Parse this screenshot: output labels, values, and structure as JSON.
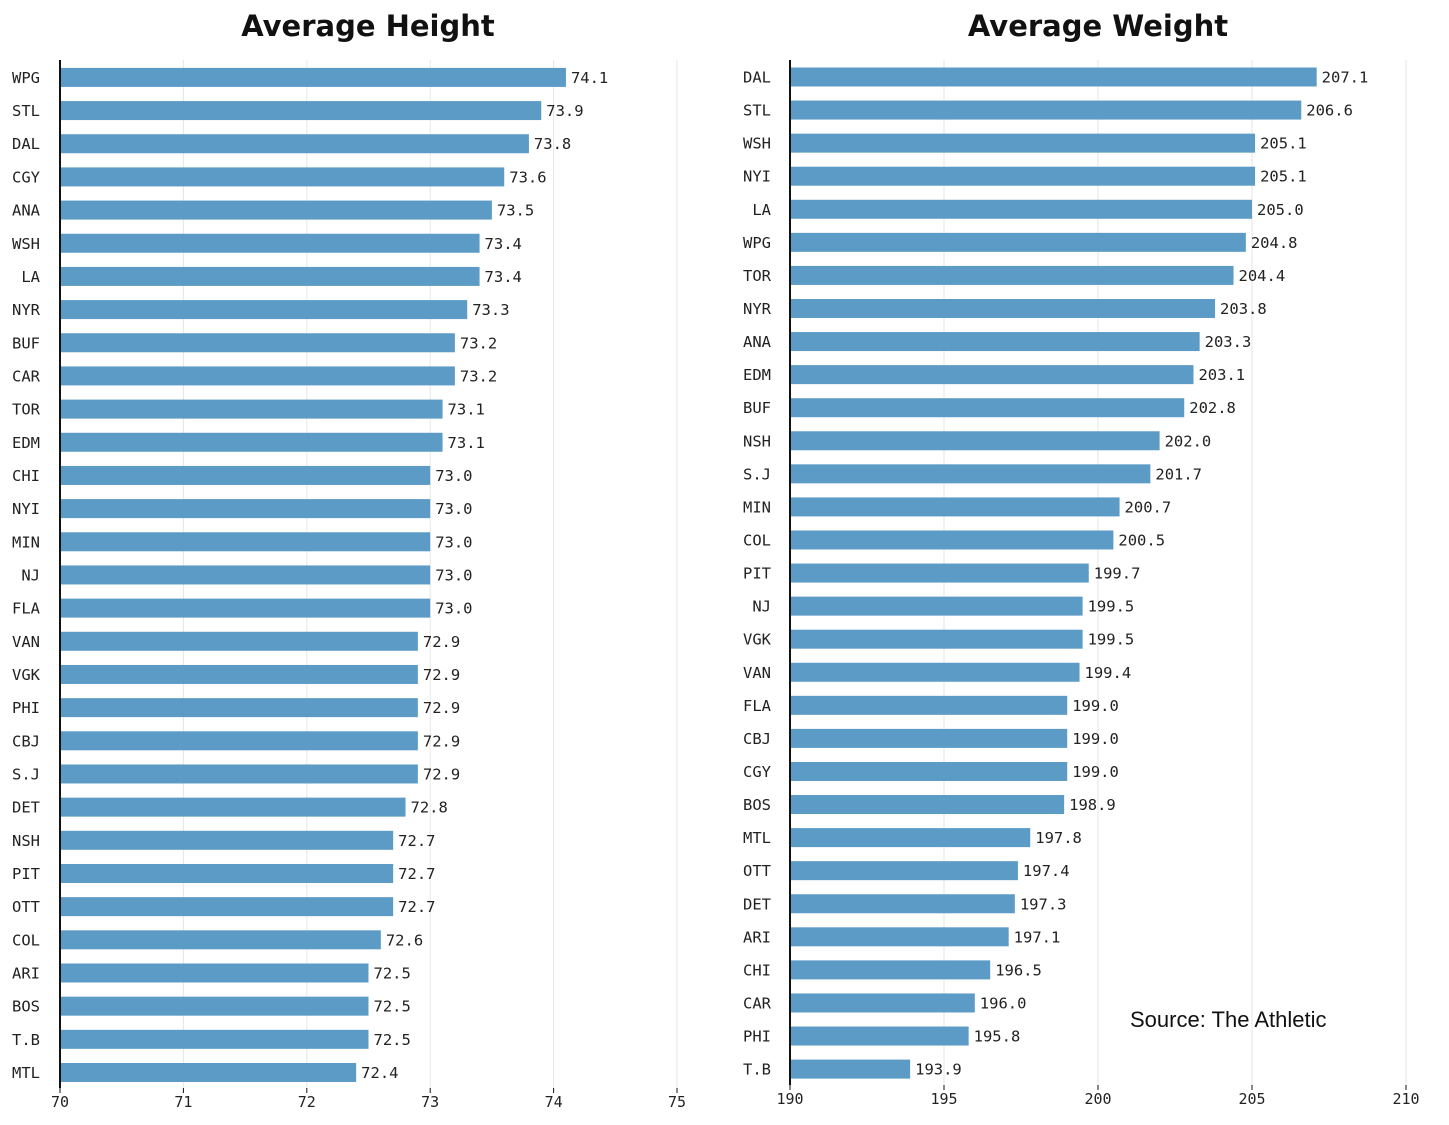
{
  "source_text": "Source: The Athletic",
  "colors": {
    "bar": "#5b9bc6",
    "grid": "#e6e6e6",
    "axis": "#111111"
  },
  "chart_data": [
    {
      "type": "bar",
      "orientation": "horizontal",
      "title": "Average Height",
      "xlabel": "",
      "ylabel": "",
      "xlim": [
        70,
        75
      ],
      "ticks": [
        70,
        71,
        72,
        73,
        74,
        75
      ],
      "grid": true,
      "categories": [
        "WPG",
        "STL",
        "DAL",
        "CGY",
        "ANA",
        "WSH",
        "LA",
        "NYR",
        "BUF",
        "CAR",
        "TOR",
        "EDM",
        "CHI",
        "NYI",
        "MIN",
        "NJ",
        "FLA",
        "VAN",
        "VGK",
        "PHI",
        "CBJ",
        "S.J",
        "DET",
        "NSH",
        "PIT",
        "OTT",
        "COL",
        "ARI",
        "BOS",
        "T.B",
        "MTL"
      ],
      "values": [
        74.1,
        73.9,
        73.8,
        73.6,
        73.5,
        73.4,
        73.4,
        73.3,
        73.2,
        73.2,
        73.1,
        73.1,
        73.0,
        73.0,
        73.0,
        73.0,
        73.0,
        72.9,
        72.9,
        72.9,
        72.9,
        72.9,
        72.8,
        72.7,
        72.7,
        72.7,
        72.6,
        72.5,
        72.5,
        72.5,
        72.4
      ],
      "value_labels": [
        "74.1",
        "73.9",
        "73.8",
        "73.6",
        "73.5",
        "73.4",
        "73.4",
        "73.3",
        "73.2",
        "73.2",
        "73.1",
        "73.1",
        "73.0",
        "73.0",
        "73.0",
        "73.0",
        "73.0",
        "72.9",
        "72.9",
        "72.9",
        "72.9",
        "72.9",
        "72.8",
        "72.7",
        "72.7",
        "72.7",
        "72.6",
        "72.5",
        "72.5",
        "72.5",
        "72.4"
      ]
    },
    {
      "type": "bar",
      "orientation": "horizontal",
      "title": "Average Weight",
      "xlabel": "",
      "ylabel": "",
      "xlim": [
        190,
        210
      ],
      "ticks": [
        190,
        195,
        200,
        205,
        210
      ],
      "grid": true,
      "categories": [
        "DAL",
        "STL",
        "WSH",
        "NYI",
        "LA",
        "WPG",
        "TOR",
        "NYR",
        "ANA",
        "EDM",
        "BUF",
        "NSH",
        "S.J",
        "MIN",
        "COL",
        "PIT",
        "NJ",
        "VGK",
        "VAN",
        "FLA",
        "CBJ",
        "CGY",
        "BOS",
        "MTL",
        "OTT",
        "DET",
        "ARI",
        "CHI",
        "CAR",
        "PHI",
        "T.B"
      ],
      "values": [
        207.1,
        206.6,
        205.1,
        205.1,
        205.0,
        204.8,
        204.4,
        203.8,
        203.3,
        203.1,
        202.8,
        202.0,
        201.7,
        200.7,
        200.5,
        199.7,
        199.5,
        199.5,
        199.4,
        199.0,
        199.0,
        199.0,
        198.9,
        197.8,
        197.4,
        197.3,
        197.1,
        196.5,
        196.0,
        195.8,
        193.9
      ],
      "value_labels": [
        "207.1",
        "206.6",
        "205.1",
        "205.1",
        "205.0",
        "204.8",
        "204.4",
        "203.8",
        "203.3",
        "203.1",
        "202.8",
        "202.0",
        "201.7",
        "200.7",
        "200.5",
        "199.7",
        "199.5",
        "199.5",
        "199.4",
        "199.0",
        "199.0",
        "199.0",
        "198.9",
        "197.8",
        "197.4",
        "197.3",
        "197.1",
        "196.5",
        "196.0",
        "195.8",
        "193.9"
      ]
    }
  ]
}
